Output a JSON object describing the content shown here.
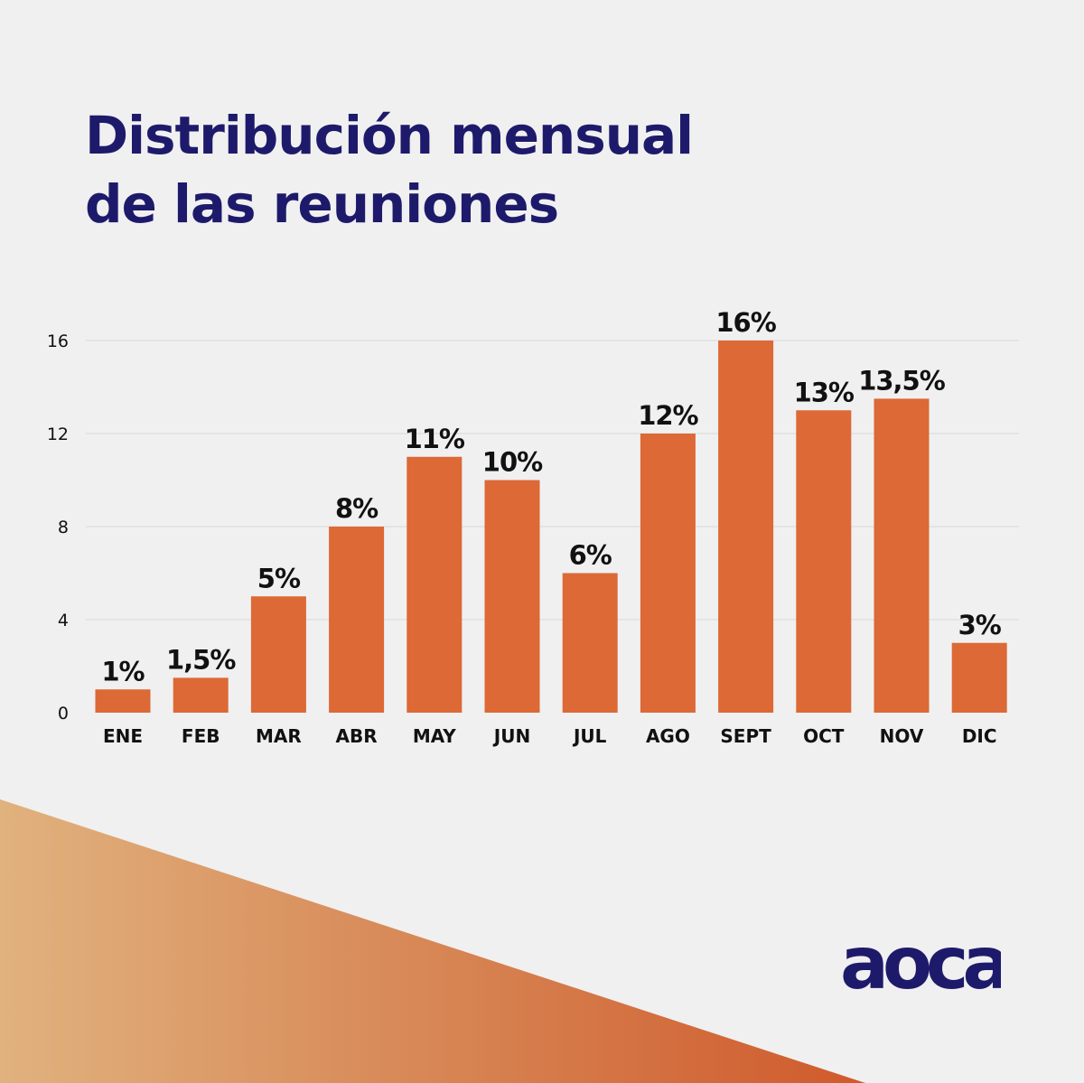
{
  "title": {
    "line1": "Distribución mensual",
    "line2": "de las reuniones"
  },
  "chart_data": {
    "type": "bar",
    "categories": [
      "ENE",
      "FEB",
      "MAR",
      "ABR",
      "MAY",
      "JUN",
      "JUL",
      "AGO",
      "SEPT",
      "OCT",
      "NOV",
      "DIC"
    ],
    "values": [
      1,
      1.5,
      5,
      8,
      11,
      10,
      6,
      12,
      16,
      13,
      13.5,
      3
    ],
    "data_labels": [
      "1%",
      "1,5%",
      "5%",
      "8%",
      "11%",
      "10%",
      "6%",
      "12%",
      "16%",
      "13%",
      "13,5%",
      "3%"
    ],
    "yticks": [
      0,
      4,
      8,
      12,
      16
    ],
    "ylim": [
      0,
      16
    ],
    "grid": true,
    "legend": "none",
    "xlabel": "",
    "ylabel": ""
  },
  "logo": {
    "text": "aoca"
  },
  "colors": {
    "background": "#f0f0f0",
    "bar": "#dc6936",
    "title": "#1e1a6b",
    "grid": "#d9d9d9",
    "label": "#111111",
    "wedge_start": "#e0b27e",
    "wedge_end": "#cf5a2c",
    "logo": "#1e1a6b"
  }
}
